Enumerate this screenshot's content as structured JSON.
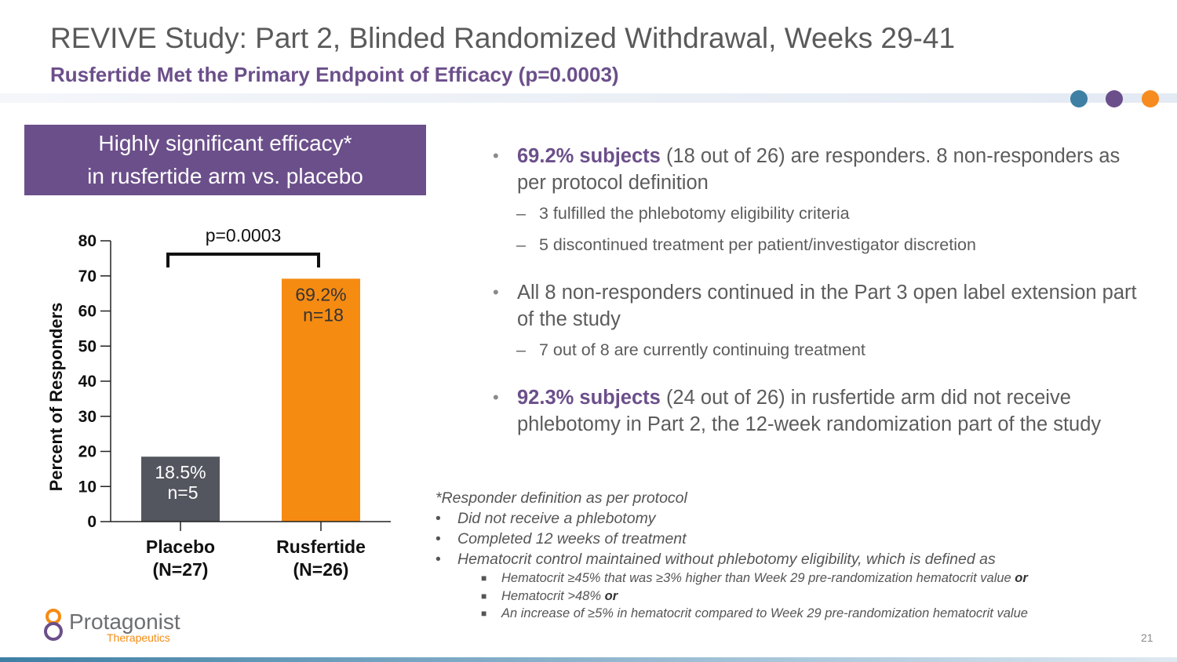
{
  "slide": {
    "title": "REVIVE Study: Part 2, Blinded Randomized Withdrawal, Weeks 29-41",
    "subtitle": "Rusfertide Met the Primary Endpoint of Efficacy (p=0.0003)",
    "page_number": "21"
  },
  "callout": {
    "line1": "Highly significant efficacy*",
    "line2": "in rusfertide arm vs. placebo"
  },
  "chart_data": {
    "type": "bar",
    "title": "",
    "xlabel": "",
    "ylabel": "Percent of  Responders",
    "ylim": [
      0,
      80
    ],
    "yticks": [
      0,
      10,
      20,
      30,
      40,
      50,
      60,
      70,
      80
    ],
    "categories": [
      "Placebo",
      "Rusfertide"
    ],
    "category_n": [
      "(N=27)",
      "(N=26)"
    ],
    "values": [
      18.5,
      69.2
    ],
    "bar_labels": [
      "18.5%",
      "69.2%"
    ],
    "bar_n": [
      "n=5",
      "n=18"
    ],
    "bar_colors": [
      "#54565f",
      "#f68b12"
    ],
    "annotation": "p=0.0003"
  },
  "bullets": [
    {
      "bold": "69.2% subjects",
      "text": " (18 out of 26) are responders. 8 non-responders as per protocol definition",
      "subs": [
        "3 fulfilled the phlebotomy eligibility criteria",
        "5 discontinued treatment per patient/investigator discretion"
      ]
    },
    {
      "bold": "",
      "text": "All 8 non-responders continued in the Part 3 open label extension part of the study",
      "subs": [
        "7 out of 8 are currently continuing treatment"
      ]
    },
    {
      "bold": "92.3% subjects",
      "text": " (24 out of 26) in rusfertide arm did not receive phlebotomy in Part 2, the 12-week randomization part of the study",
      "subs": []
    }
  ],
  "footnote": {
    "heading": "*Responder definition as per protocol",
    "items": [
      "Did not receive a phlebotomy",
      "Completed 12 weeks of treatment",
      "Hematocrit control maintained without phlebotomy eligibility, which is defined as"
    ],
    "subitems": [
      {
        "text": "Hematocrit ≥45% that was ≥3% higher than Week 29 pre-randomization hematocrit value ",
        "conj": "or"
      },
      {
        "text": "Hematocrit >48% ",
        "conj": "or"
      },
      {
        "text": "An increase of ≥5% in hematocrit compared to Week 29 pre-randomization hematocrit value",
        "conj": ""
      }
    ]
  },
  "logo": {
    "name": "Protagonist",
    "tagline": "Therapeutics"
  },
  "colors": {
    "purple": "#6b4f8a",
    "orange": "#f68b12",
    "blue": "#3e7fa4",
    "placebo": "#54565f"
  }
}
